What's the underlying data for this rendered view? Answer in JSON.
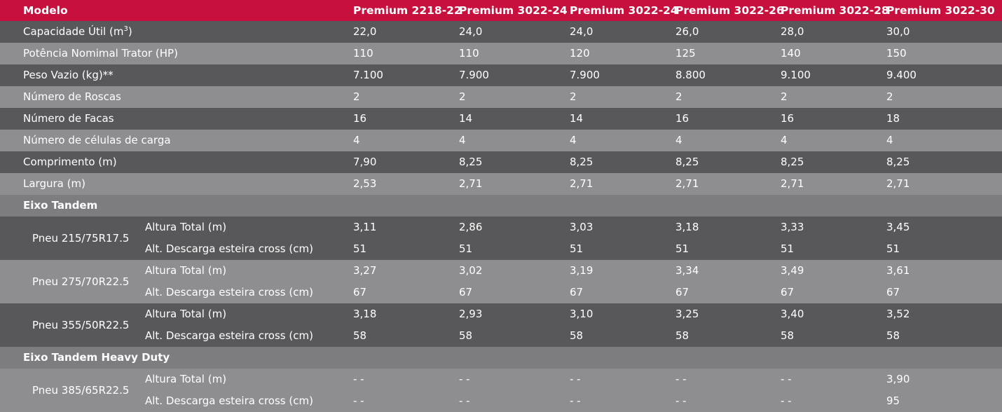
{
  "header": {
    "label": "Modelo",
    "models": [
      "Premium 2218-22",
      "Premium 3022-24",
      "Premium 3022-24",
      "Premium 3022-26",
      "Premium 3022-28",
      "Premium 3022-30"
    ]
  },
  "rows": [
    {
      "label": "Capacidade Útil (m",
      "label_sup": "3",
      "label_end": ")",
      "values": [
        "22,0",
        "24,0",
        "24,0",
        "26,0",
        "28,0",
        "30,0"
      ]
    },
    {
      "label": "Potência Nomimal Trator (HP)",
      "values": [
        "110",
        "110",
        "120",
        "125",
        "140",
        "150"
      ]
    },
    {
      "label": "Peso Vazio (kg)**",
      "values": [
        "7.100",
        "7.900",
        "7.900",
        "8.800",
        "9.100",
        "9.400"
      ]
    },
    {
      "label": "Número de Roscas",
      "values": [
        "2",
        "2",
        "2",
        "2",
        "2",
        "2"
      ]
    },
    {
      "label": "Número de Facas",
      "values": [
        "16",
        "14",
        "14",
        "16",
        "16",
        "18"
      ]
    },
    {
      "label": "Número de células de carga",
      "values": [
        "4",
        "4",
        "4",
        "4",
        "4",
        "4"
      ]
    },
    {
      "label": "Comprimento (m)",
      "values": [
        "7,90",
        "8,25",
        "8,25",
        "8,25",
        "8,25",
        "8,25"
      ]
    },
    {
      "label": "Largura (m)",
      "values": [
        "2,53",
        "2,71",
        "2,71",
        "2,71",
        "2,71",
        "2,71"
      ]
    }
  ],
  "sections": {
    "tandem": {
      "title": "Eixo Tandem",
      "blocks": [
        {
          "tire": "Pneu 215/75R17.5",
          "rows": [
            {
              "label": "Altura Total (m)",
              "values": [
                "3,11",
                "2,86",
                "3,03",
                "3,18",
                "3,33",
                "3,45"
              ]
            },
            {
              "label": "Alt. Descarga esteira cross (cm)",
              "values": [
                "51",
                "51",
                "51",
                "51",
                "51",
                "51"
              ]
            }
          ]
        },
        {
          "tire": "Pneu 275/70R22.5",
          "rows": [
            {
              "label": "Altura Total (m)",
              "values": [
                "3,27",
                "3,02",
                "3,19",
                "3,34",
                "3,49",
                "3,61"
              ]
            },
            {
              "label": "Alt. Descarga esteira cross (cm)",
              "values": [
                "67",
                "67",
                "67",
                "67",
                "67",
                "67"
              ]
            }
          ]
        },
        {
          "tire": "Pneu 355/50R22.5",
          "rows": [
            {
              "label": "Altura Total (m)",
              "values": [
                "3,18",
                "2,93",
                "3,10",
                "3,25",
                "3,40",
                "3,52"
              ]
            },
            {
              "label": "Alt. Descarga esteira cross (cm)",
              "values": [
                "58",
                "58",
                "58",
                "58",
                "58",
                "58"
              ]
            }
          ]
        }
      ]
    },
    "heavy": {
      "title": "Eixo Tandem Heavy Duty",
      "blocks": [
        {
          "tire": "Pneu 385/65R22.5",
          "rows": [
            {
              "label": "Altura Total (m)",
              "values": [
                "- -",
                "- -",
                "- -",
                "- -",
                "- -",
                "3,90"
              ]
            },
            {
              "label": "Alt. Descarga esteira cross (cm)",
              "values": [
                "- -",
                "- -",
                "- -",
                "- -",
                "- -",
                "95"
              ]
            }
          ]
        }
      ]
    }
  },
  "colors": {
    "header": "#c8103e",
    "row_dark": "#58585a",
    "row_light": "#8e8e91",
    "section": "#7d7d80"
  }
}
